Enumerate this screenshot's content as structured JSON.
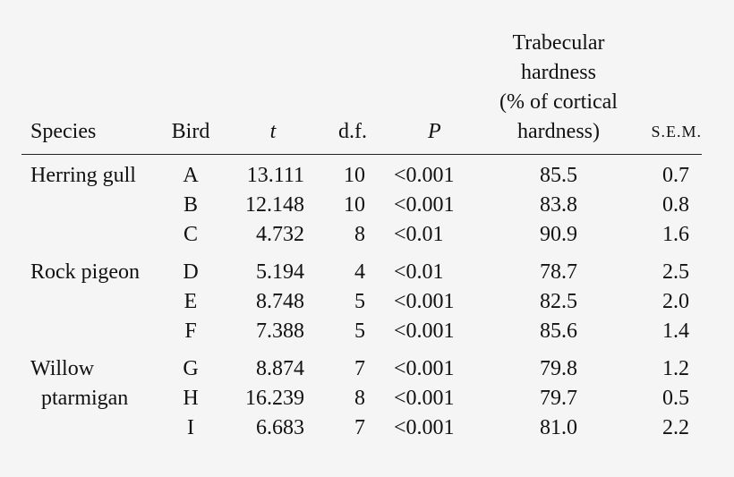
{
  "header": {
    "species": "Species",
    "bird": "Bird",
    "t": "t",
    "df": "d.f.",
    "p": "P",
    "trabecular": [
      "Trabecular",
      "hardness",
      "(% of cortical",
      "hardness)"
    ],
    "sem": "S.E.M."
  },
  "groups": [
    {
      "species_lines": [
        "Herring gull"
      ],
      "rows": [
        {
          "bird": "A",
          "t": "13.111",
          "df": "10",
          "p": "<0.001",
          "trab": "85.5",
          "sem": "0.7"
        },
        {
          "bird": "B",
          "t": "12.148",
          "df": "10",
          "p": "<0.001",
          "trab": "83.8",
          "sem": "0.8"
        },
        {
          "bird": "C",
          "t": "4.732",
          "df": "8",
          "p": "<0.01",
          "trab": "90.9",
          "sem": "1.6"
        }
      ]
    },
    {
      "species_lines": [
        "Rock pigeon"
      ],
      "rows": [
        {
          "bird": "D",
          "t": "5.194",
          "df": "4",
          "p": "<0.01",
          "trab": "78.7",
          "sem": "2.5"
        },
        {
          "bird": "E",
          "t": "8.748",
          "df": "5",
          "p": "<0.001",
          "trab": "82.5",
          "sem": "2.0"
        },
        {
          "bird": "F",
          "t": "7.388",
          "df": "5",
          "p": "<0.001",
          "trab": "85.6",
          "sem": "1.4"
        }
      ]
    },
    {
      "species_lines": [
        "Willow",
        "ptarmigan"
      ],
      "rows": [
        {
          "bird": "G",
          "t": "8.874",
          "df": "7",
          "p": "<0.001",
          "trab": "79.8",
          "sem": "1.2"
        },
        {
          "bird": "H",
          "t": "16.239",
          "df": "8",
          "p": "<0.001",
          "trab": "79.7",
          "sem": "0.5"
        },
        {
          "bird": "I",
          "t": "6.683",
          "df": "7",
          "p": "<0.001",
          "trab": "81.0",
          "sem": "2.2"
        }
      ]
    }
  ]
}
